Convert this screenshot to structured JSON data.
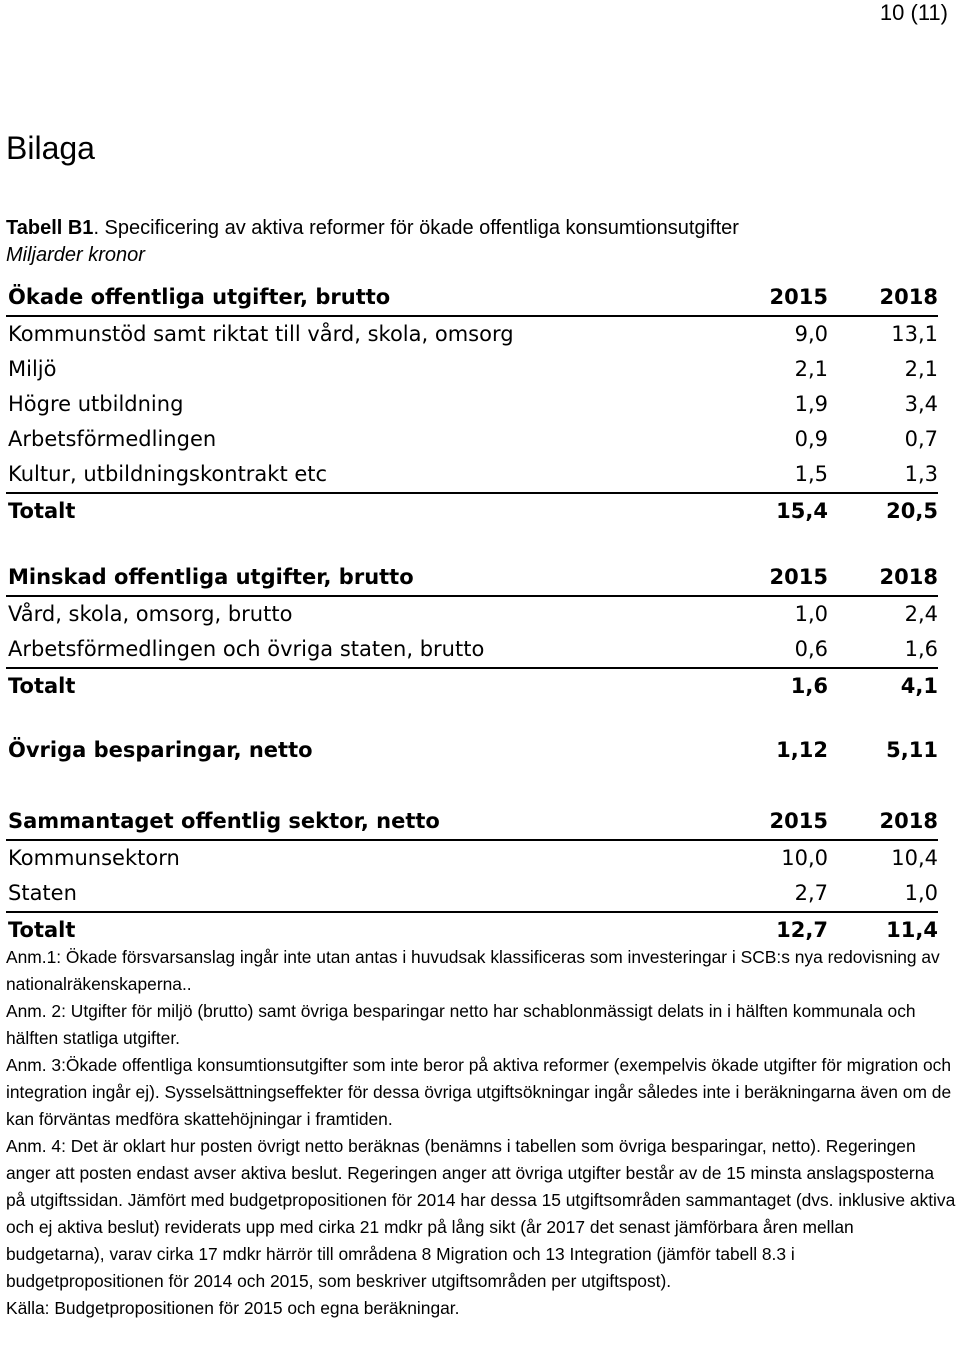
{
  "page_number": "10 (11)",
  "title": "Bilaga",
  "table_label": "Tabell B1",
  "table_caption": ". Specificering av aktiva reformer för ökade offentliga konsumtionsutgifter",
  "units": "Miljarder kronor",
  "sections": [
    {
      "header": {
        "label": "Ökade offentliga utgifter, brutto",
        "col1": "2015",
        "col2": "2018"
      },
      "rows": [
        {
          "label": "Kommunstöd samt riktat till vård, skola, omsorg",
          "v2015": "9,0",
          "v2018": "13,1"
        },
        {
          "label": "Miljö",
          "v2015": "2,1",
          "v2018": "2,1"
        },
        {
          "label": "Högre utbildning",
          "v2015": "1,9",
          "v2018": "3,4"
        },
        {
          "label": "Arbetsförmedlingen",
          "v2015": "0,9",
          "v2018": "0,7"
        },
        {
          "label": "Kultur, utbildningskontrakt etc",
          "v2015": "1,5",
          "v2018": "1,3"
        }
      ],
      "total": {
        "label": "Totalt",
        "v2015": "15,4",
        "v2018": "20,5"
      }
    },
    {
      "header": {
        "label": "Minskad offentliga utgifter, brutto",
        "col1": "2015",
        "col2": "2018"
      },
      "rows": [
        {
          "label": "Vård, skola, omsorg, brutto",
          "v2015": "1,0",
          "v2018": "2,4"
        },
        {
          "label": "Arbetsförmedlingen och övriga staten, brutto",
          "v2015": "0,6",
          "v2018": "1,6"
        }
      ],
      "total": {
        "label": "Totalt",
        "v2015": "1,6",
        "v2018": "4,1"
      }
    },
    {
      "single": {
        "label": "Övriga besparingar, netto",
        "v2015": "1,12",
        "v2018": "5,11"
      }
    },
    {
      "header": {
        "label": "Sammantaget offentlig sektor, netto",
        "col1": "2015",
        "col2": "2018"
      },
      "rows": [
        {
          "label": "Kommunsektorn",
          "v2015": "10,0",
          "v2018": "10,4"
        },
        {
          "label": "Staten",
          "v2015": "2,7",
          "v2018": "1,0"
        }
      ],
      "total": {
        "label": "Totalt",
        "v2015": "12,7",
        "v2018": "11,4"
      }
    }
  ],
  "notes": [
    "Anm.1: Ökade försvarsanslag ingår inte utan antas i huvudsak klassificeras som investeringar i SCB:s nya redovisning av nationalräkenskaperna..",
    "Anm. 2: Utgifter för miljö (brutto) samt övriga besparingar netto har schablonmässigt delats in i hälften kommunala och hälften statliga utgifter.",
    "Anm. 3:Ökade offentliga konsumtionsutgifter som inte beror på aktiva reformer (exempelvis ökade utgifter för migration och integration ingår ej). Sysselsättningseffekter för dessa övriga utgiftsökningar ingår således inte i beräkningarna även om de kan förväntas medföra skattehöjningar i framtiden.",
    "Anm. 4: Det är oklart hur posten övrigt netto beräknas (benämns i tabellen som övriga besparingar, netto). Regeringen anger att posten endast avser aktiva beslut. Regeringen anger att övriga utgifter består av de 15 minsta anslagsposterna på utgiftssidan. Jämfört med budgetpropositionen för 2014 har dessa 15 utgiftsområden sammantaget (dvs. inklusive aktiva och ej aktiva beslut) reviderats upp med cirka 21 mdkr på lång sikt (år 2017 det senast jämförbara åren mellan budgetarna), varav cirka 17 mdkr härrör till områdena 8 Migration och 13 Integration (jämför tabell 8.3 i budgetpropositionen för 2014 och 2015, som beskriver utgiftsområden per utgiftspost).",
    "Källa: Budgetpropositionen för 2015 och egna beräkningar."
  ]
}
